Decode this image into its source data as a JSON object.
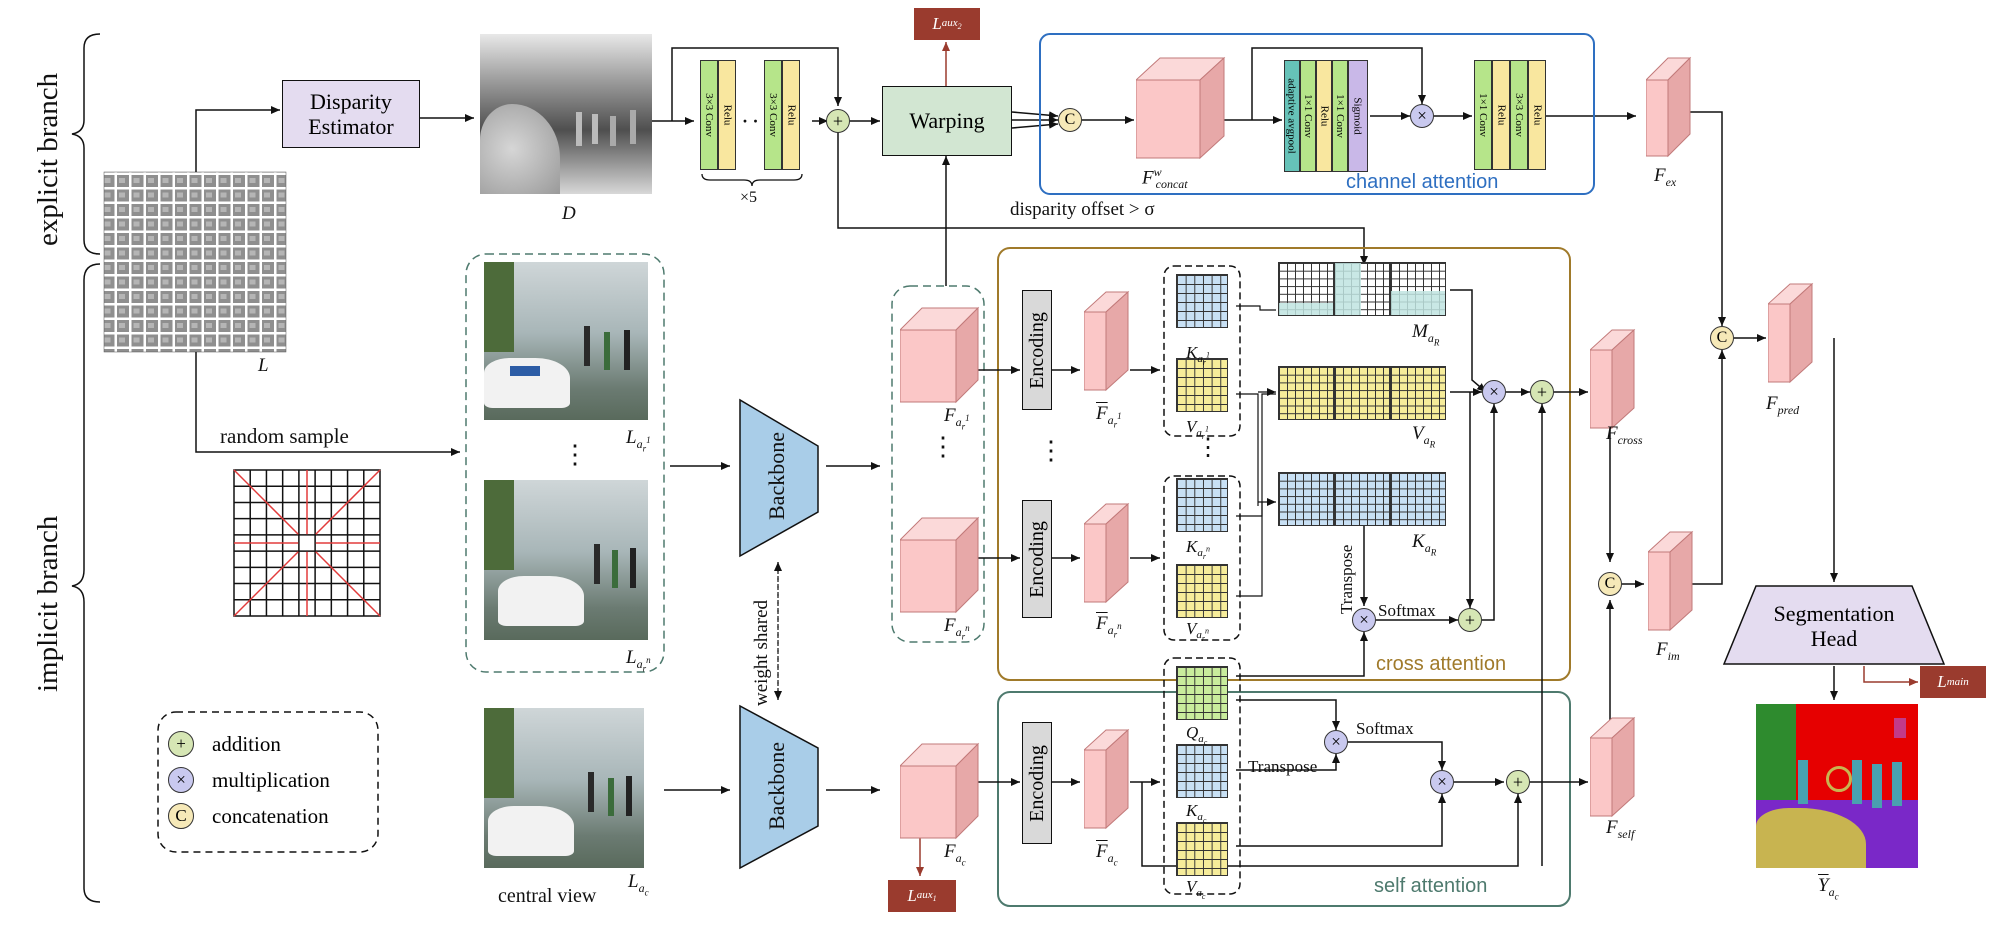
{
  "branches": {
    "explicit": "explicit branch",
    "implicit": "implicit branch"
  },
  "blocks": {
    "disparity_estimator": "Disparity\nEstimator",
    "warping": "Warping",
    "segmentation_head": "Segmentation\nHead",
    "backbone": "Backbone",
    "encoding": "Encoding"
  },
  "conv_layers": {
    "conv3x3": "3×3 Conv",
    "relu": "Relu",
    "dots": "· · ·",
    "repeat": "×5",
    "adaptive_avgpool": "adaptive avgpool",
    "conv1x1": "1×1 Conv",
    "sigmoid": "Sigmoid"
  },
  "labels": {
    "D": "D",
    "L": "L",
    "F_concat": "F",
    "F_concat_sup": "w",
    "F_concat_sub": "concat",
    "F_ex": "F",
    "F_ex_sub": "ex",
    "F_pred": "F",
    "F_pred_sub": "pred",
    "F_cross": "F",
    "F_cross_sub": "cross",
    "F_im": "F",
    "F_im_sub": "im",
    "F_self": "F",
    "F_self_sub": "self",
    "F_ar1": "F",
    "F_ar1_sub": "a",
    "F_ar1_subsub": "r",
    "F_ar1_sup": "1",
    "F_arn": "F",
    "F_arn_sub": "a",
    "F_arn_subsub": "r",
    "F_arn_sup": "n",
    "F_ac": "F",
    "F_ac_sub": "a",
    "F_ac_subsub": "c",
    "Fbar_ar1": "F",
    "Fbar_arn": "F",
    "Fbar_ac": "F",
    "K_ar1": "K",
    "V_ar1": "V",
    "K_arn": "K",
    "V_arn": "V",
    "Q_ac": "Q",
    "K_ac": "K",
    "V_ac": "V",
    "M_aR": "M",
    "V_aR": "V",
    "K_aR": "K",
    "sub_aR": "a",
    "subsub_R": "R",
    "L_ar1": "L",
    "L_arn": "L",
    "L_ac": "L",
    "Y_ac": "Y",
    "random_sample": "random sample",
    "central_view": "central view",
    "disparity_offset": "disparity offset > σ",
    "channel_attention": "channel attention",
    "cross_attention": "cross attention",
    "self_attention": "self attention",
    "weight_shared": "weight  shared",
    "transpose": "Transpose",
    "softmax": "Softmax",
    "vdots": "⋮"
  },
  "losses": {
    "aux1": "L",
    "aux1_sub": "aux",
    "aux1_subsub": "1",
    "aux2": "L",
    "aux2_sub": "aux",
    "aux2_subsub": "2",
    "main": "L",
    "main_sub": "main"
  },
  "legend": {
    "addition": "addition",
    "multiplication": "multiplication",
    "concatenation": "concatenation",
    "add_sym": "+",
    "mul_sym": "×",
    "cat_sym": "C"
  },
  "colors": {
    "pink": "#f9c6c6",
    "green_box": "#d2e6d2",
    "lavender": "#e4dcf0",
    "conv_green": "#b6e58a",
    "relu_yellow": "#f9e79f",
    "avgpool_teal": "#66c2b8",
    "sigmoid_purple": "#c9b8e8",
    "loss_red": "#9a3b2e",
    "channel_blue": "#2e6fc1",
    "cross_brown": "#a07a2a",
    "self_gray": "#4e7a6e",
    "backbone_blue": "#a9cde8",
    "key_blue": "#c8e0f4",
    "value_yellow": "#f6ec9a",
    "query_green": "#c9ec9d",
    "mask_teal": "#c0e4e0"
  }
}
